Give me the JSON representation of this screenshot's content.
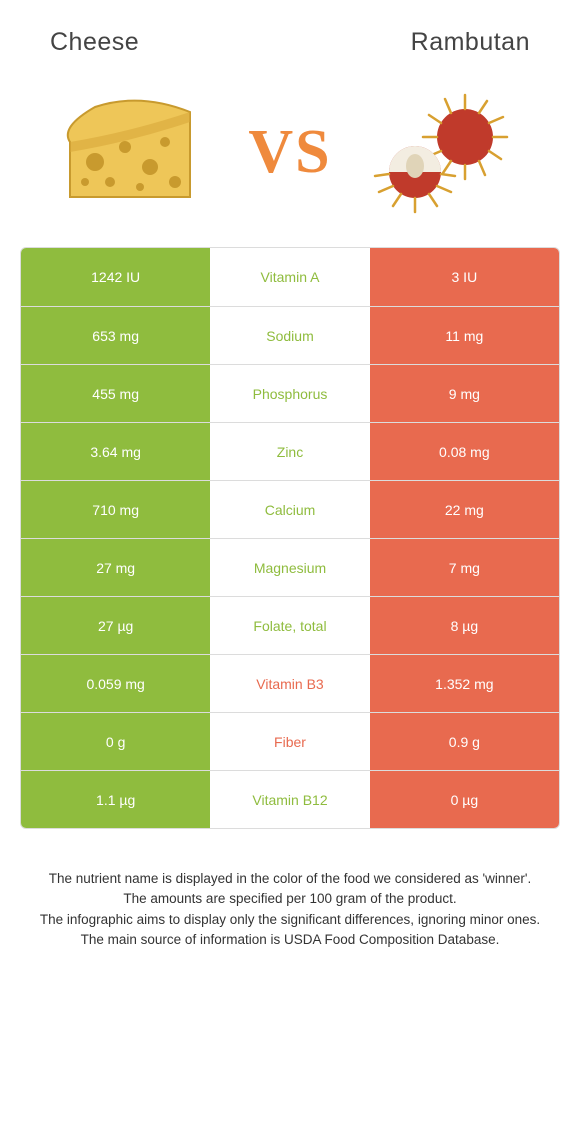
{
  "header": {
    "left": "Cheese",
    "right": "Rambutan"
  },
  "vs": "VS",
  "colors": {
    "left": "#8fbc3e",
    "right": "#e86a4f",
    "cheese_fill": "#eec658",
    "cheese_stroke": "#c89a2e",
    "rambutan_fill": "#c03a2b",
    "rambutan_spine": "#d8a030",
    "rambutan_flesh": "#f3ede1"
  },
  "rows": [
    {
      "left": "1242 IU",
      "label": "Vitamin A",
      "right": "3 IU",
      "winner": "left"
    },
    {
      "left": "653 mg",
      "label": "Sodium",
      "right": "11 mg",
      "winner": "left"
    },
    {
      "left": "455 mg",
      "label": "Phosphorus",
      "right": "9 mg",
      "winner": "left"
    },
    {
      "left": "3.64 mg",
      "label": "Zinc",
      "right": "0.08 mg",
      "winner": "left"
    },
    {
      "left": "710 mg",
      "label": "Calcium",
      "right": "22 mg",
      "winner": "left"
    },
    {
      "left": "27 mg",
      "label": "Magnesium",
      "right": "7 mg",
      "winner": "left"
    },
    {
      "left": "27 µg",
      "label": "Folate, total",
      "right": "8 µg",
      "winner": "left"
    },
    {
      "left": "0.059 mg",
      "label": "Vitamin B3",
      "right": "1.352 mg",
      "winner": "right"
    },
    {
      "left": "0 g",
      "label": "Fiber",
      "right": "0.9 g",
      "winner": "right"
    },
    {
      "left": "1.1 µg",
      "label": "Vitamin B12",
      "right": "0 µg",
      "winner": "left"
    }
  ],
  "footer": {
    "l1": "The nutrient name is displayed in the color of the food we considered as 'winner'.",
    "l2": "The amounts are specified per 100 gram of the product.",
    "l3": "The infographic aims to display only the significant differences, ignoring minor ones.",
    "l4": "The main source of information is USDA Food Composition Database."
  }
}
